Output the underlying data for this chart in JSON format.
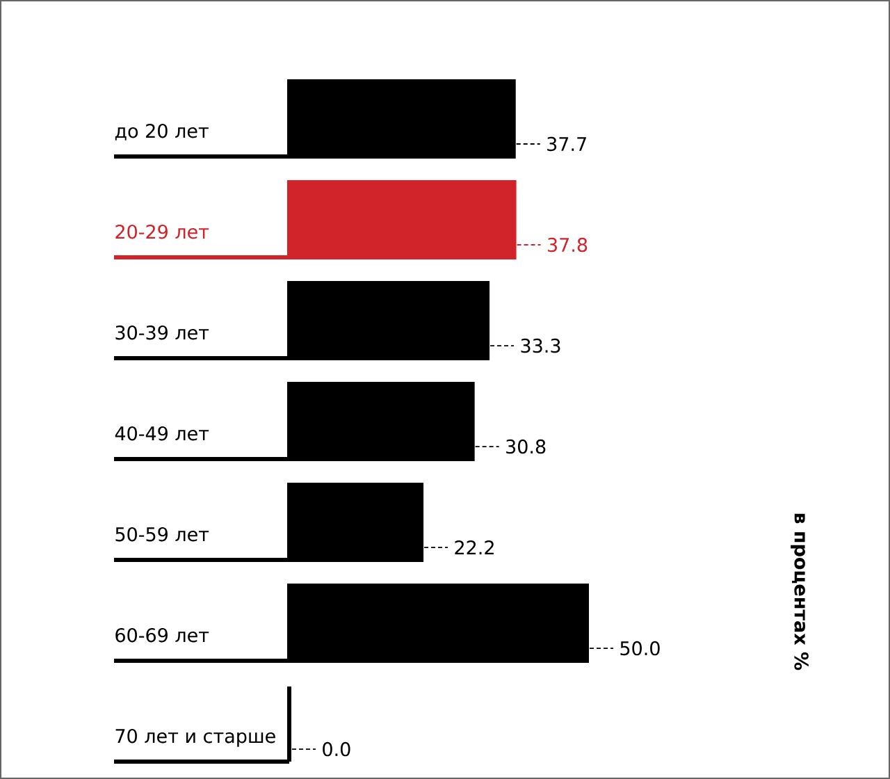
{
  "chart_data": {
    "type": "bar",
    "orientation": "horizontal",
    "categories": [
      "до 20 лет",
      "20-29 лет",
      "30-39 лет",
      "40-49 лет",
      "50-59 лет",
      "60-69 лет",
      "70 лет и старше"
    ],
    "values": [
      37.7,
      37.8,
      33.3,
      30.8,
      22.2,
      50.0,
      0.0
    ],
    "value_labels": [
      "37.7",
      "37.8",
      "33.3",
      "30.8",
      "22.2",
      "50.0",
      "0.0"
    ],
    "colors": [
      "#000000",
      "#d0232a",
      "#000000",
      "#000000",
      "#000000",
      "#000000",
      "#000000"
    ],
    "annotations": [
      "в процентах %"
    ]
  }
}
